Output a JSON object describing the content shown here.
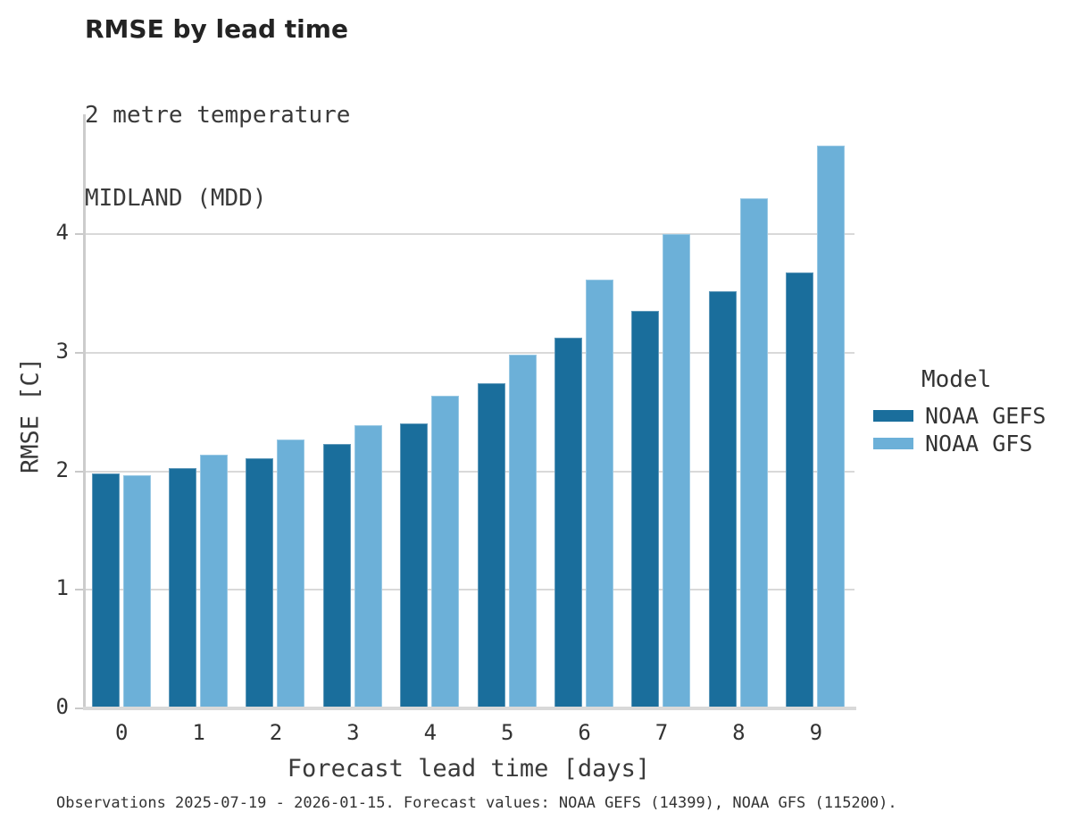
{
  "title": "RMSE by lead time",
  "subtitle_lines": [
    "2 metre temperature",
    "MIDLAND (MDD)"
  ],
  "footer": "Observations 2025-07-19 - 2026-01-15. Forecast values: NOAA GEFS (14399), NOAA GFS (115200).",
  "legend": {
    "title": "Model"
  },
  "colors": {
    "gefs_bar": "#1a6e9c",
    "gfs_bar": "#6cb0d8",
    "gridline": "#d9d9d9",
    "spine": "#cccccc",
    "text": "#333333"
  },
  "chart_data": {
    "type": "bar",
    "title": "RMSE by lead time",
    "subtitle_lines": [
      "2 metre temperature",
      "MIDLAND (MDD)"
    ],
    "categories": [
      "0",
      "1",
      "2",
      "3",
      "4",
      "5",
      "6",
      "7",
      "8",
      "9"
    ],
    "series": [
      {
        "name": "NOAA GEFS",
        "color": "#1a6e9c",
        "values": [
          1.98,
          2.03,
          2.11,
          2.23,
          2.4,
          2.74,
          3.13,
          3.35,
          3.52,
          3.68
        ]
      },
      {
        "name": "NOAA GFS",
        "color": "#6cb0d8",
        "values": [
          1.97,
          2.14,
          2.27,
          2.39,
          2.64,
          2.98,
          3.62,
          4.0,
          4.3,
          4.75
        ]
      }
    ],
    "xlabel": "Forecast lead time [days]",
    "ylabel": "RMSE [C]",
    "ylim": [
      0,
      5.01
    ],
    "yticks": [
      0,
      1,
      2,
      3,
      4
    ],
    "grid": "horizontal",
    "legend_title": "Model",
    "legend_position": "right-center"
  }
}
